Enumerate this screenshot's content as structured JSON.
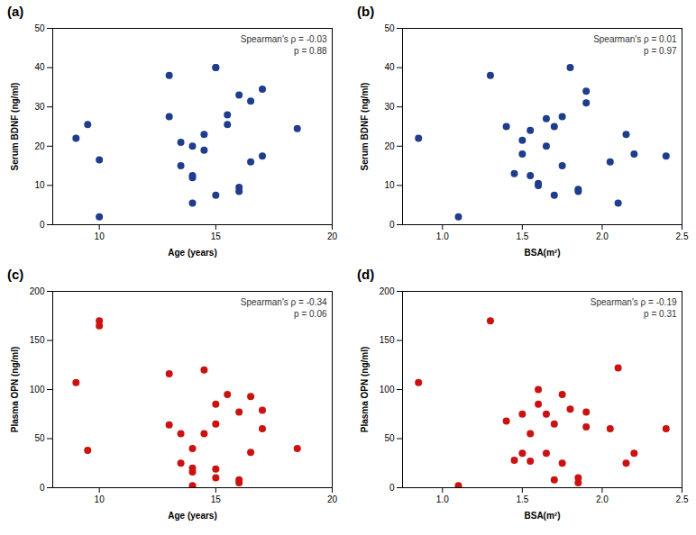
{
  "chart_data": [
    {
      "type": "scatter",
      "title": "(a)",
      "x": [
        9,
        9.5,
        10,
        10,
        13,
        13,
        13.5,
        13.5,
        14,
        14,
        14,
        14,
        14.5,
        14.5,
        15,
        15,
        15,
        15.5,
        15.5,
        16,
        16,
        16,
        16.5,
        16.5,
        17,
        17,
        18.5
      ],
      "y": [
        22,
        25.5,
        16.5,
        2,
        38,
        27.5,
        15,
        21,
        12.5,
        12,
        5.5,
        20,
        19,
        23,
        40,
        40,
        7.5,
        25.5,
        28,
        8.5,
        9.5,
        33,
        31.5,
        16,
        17.5,
        34.5,
        24.5
      ],
      "xlabel": "Age (years)",
      "ylabel": "Serum BDNF (ng/ml)",
      "xlim": [
        8,
        20
      ],
      "ylim": [
        0,
        50
      ],
      "xticks": [
        10,
        15,
        20
      ],
      "yticks": [
        0,
        10,
        20,
        30,
        40,
        50
      ],
      "annotations": [
        "Spearman's ρ = -0.03\np = 0.88"
      ],
      "color": "#1f3d8c"
    },
    {
      "type": "scatter",
      "title": "(b)",
      "x": [
        0.85,
        1.1,
        1.3,
        1.4,
        1.45,
        1.5,
        1.5,
        1.55,
        1.55,
        1.6,
        1.6,
        1.65,
        1.65,
        1.7,
        1.7,
        1.75,
        1.75,
        1.8,
        1.85,
        1.85,
        1.9,
        1.9,
        2.05,
        2.1,
        2.15,
        2.2,
        2.4
      ],
      "y": [
        22,
        2,
        38,
        25,
        13,
        18,
        21.5,
        12.5,
        24,
        10,
        10.5,
        20,
        27,
        7.5,
        25,
        27.5,
        15,
        40,
        9,
        8.5,
        31,
        34,
        16,
        5.5,
        23,
        18,
        17.5
      ],
      "xlabel": "BSA(m²)",
      "ylabel": "Serum BDNF (ng/ml)",
      "xlim": [
        0.75,
        2.5
      ],
      "ylim": [
        0,
        50
      ],
      "xticks": [
        {
          "value": 1.0,
          "label": "1.0"
        },
        1.5,
        {
          "value": 2.0,
          "label": "2.0"
        },
        2.5
      ],
      "yticks": [
        0,
        10,
        20,
        30,
        40,
        50
      ],
      "annotations": [
        "Spearman's ρ = 0.01\np = 0.97"
      ],
      "color": "#1f3d8c"
    },
    {
      "type": "scatter",
      "title": "(c)",
      "x": [
        9,
        9.5,
        10,
        10,
        13,
        13,
        13.5,
        13.5,
        14,
        14,
        14,
        14,
        14.5,
        14.5,
        15,
        15,
        15,
        15,
        15.5,
        16,
        16,
        16,
        16.5,
        16.5,
        17,
        17,
        18.5
      ],
      "y": [
        107,
        38,
        170,
        165,
        116,
        64,
        55,
        25,
        20,
        16,
        2,
        40,
        120,
        55,
        85,
        65,
        19,
        10,
        95,
        8,
        5,
        77,
        93,
        36,
        79,
        60,
        40
      ],
      "xlabel": "Age (years)",
      "ylabel": "Plasma OPN (ng/ml)",
      "xlim": [
        8,
        20
      ],
      "ylim": [
        0,
        200
      ],
      "xticks": [
        10,
        15,
        20
      ],
      "yticks": [
        0,
        50,
        100,
        150,
        200
      ],
      "annotations": [
        "Spearman's ρ = -0.34\np = 0.06"
      ],
      "color": "#cc1111"
    },
    {
      "type": "scatter",
      "title": "(d)",
      "x": [
        0.85,
        1.1,
        1.3,
        1.4,
        1.45,
        1.5,
        1.5,
        1.55,
        1.55,
        1.6,
        1.6,
        1.65,
        1.65,
        1.7,
        1.7,
        1.75,
        1.75,
        1.8,
        1.85,
        1.85,
        1.9,
        1.9,
        2.05,
        2.1,
        2.15,
        2.2,
        2.4
      ],
      "y": [
        107,
        2,
        170,
        68,
        28,
        75,
        35,
        27,
        55,
        100,
        85,
        75,
        35,
        8,
        65,
        95,
        25,
        80,
        5,
        10,
        62,
        77,
        60,
        122,
        25,
        35,
        60
      ],
      "xlabel": "BSA(m²)",
      "ylabel": "Plasma OPN (ng/ml)",
      "xlim": [
        0.75,
        2.5
      ],
      "ylim": [
        0,
        200
      ],
      "xticks": [
        {
          "value": 1.0,
          "label": "1.0"
        },
        1.5,
        {
          "value": 2.0,
          "label": "2.0"
        },
        2.5
      ],
      "yticks": [
        0,
        50,
        100,
        150,
        200
      ],
      "annotations": [
        "Spearman's ρ = -0.19\np = 0.31"
      ],
      "color": "#cc1111"
    }
  ]
}
